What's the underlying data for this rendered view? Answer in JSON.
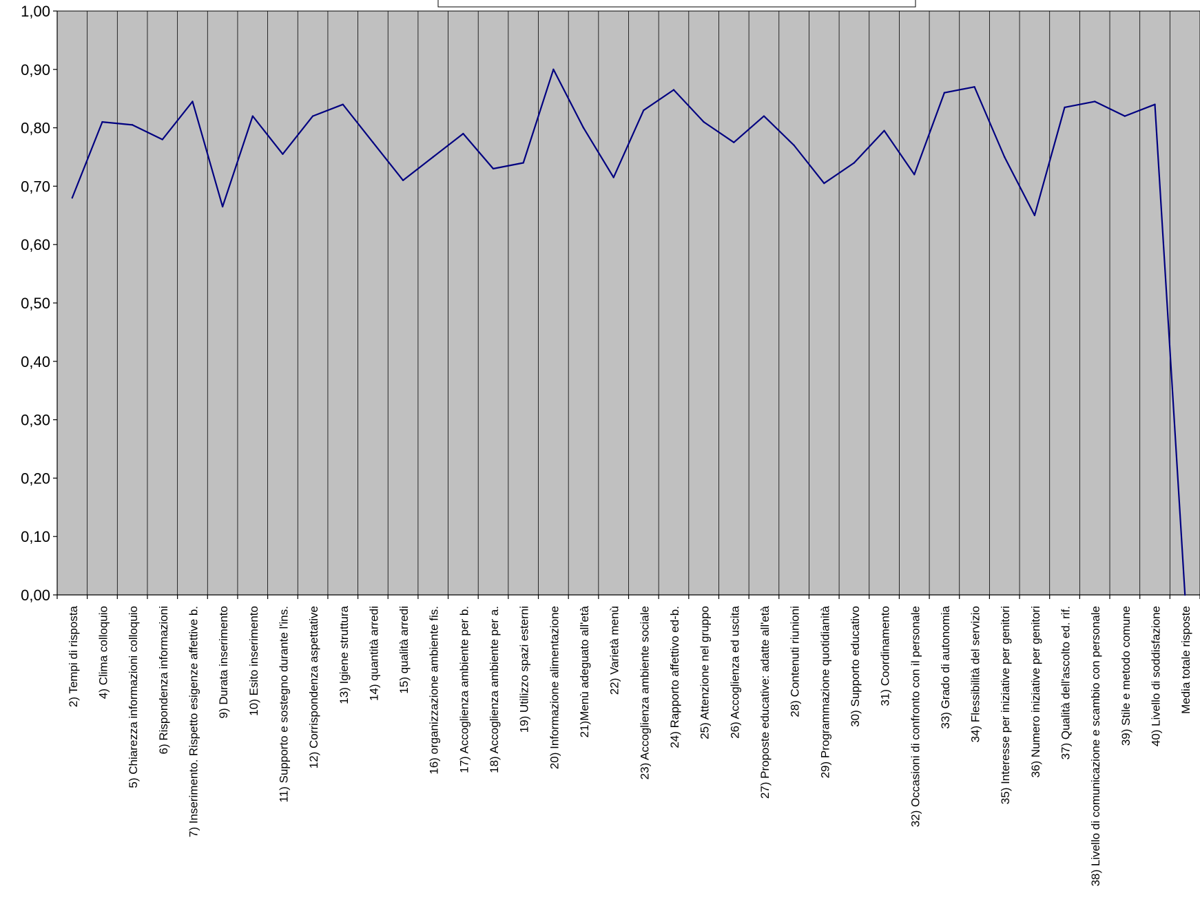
{
  "colors": {
    "plot_background": "#c0c0c0",
    "gridline": "#000000",
    "series_line": "#000080",
    "page_background": "#ffffff"
  },
  "chart_data": {
    "type": "line",
    "title": "",
    "xlabel": "",
    "ylabel": "",
    "ylim": [
      0,
      1
    ],
    "y_ticks": [
      "0,00",
      "0,10",
      "0,20",
      "0,30",
      "0,40",
      "0,50",
      "0,60",
      "0,70",
      "0,80",
      "0,90",
      "1,00"
    ],
    "grid": "vertical category dividers",
    "legend": "none visible",
    "categories": [
      "2) Tempi di risposta",
      "4) Clima colloquio",
      "5) Chiarezza informazioni colloquio",
      "6) Rispondenza informazioni",
      "7) Inserimento. Rispetto esigenze affettive b.",
      "9) Durata inserimento",
      "10) Esito inserimento",
      "11) Supporto e sostegno durante l'ins.",
      "12) Corrispondenza aspettative",
      "13) Igiene struttura",
      "14) quantità arredi",
      "15) qualità arredi",
      "16) organizzazione ambiente fis.",
      "17) Accoglienza ambiente per b.",
      "18) Accoglienza ambiente per a.",
      "19) Utilizzo spazi esterni",
      "20) Informazione alimentazione",
      "21)Menù adeguato all'età",
      "22) Varietà menù",
      "23) Accoglienza ambiente sociale",
      "24) Rapporto affettivo ed-b.",
      "25) Attenzione nel gruppo",
      "26) Accoglienza ed uscita",
      "27) Proposte educative: adatte all'età",
      "28) Contenuti riunioni",
      "29) Programmazione quotidianità",
      "30) Supporto educativo",
      "31) Coordinamento",
      "32) Occasioni di confronto con il personale",
      "33) Grado di autonomia",
      "34) Flessibilità del servizio",
      "35) Interesse per iniziative per genitori",
      "36) Numero iniziative per genitori",
      "37) Qualità dell'ascolto ed. rif.",
      "38) Livello di comunicazione e scambio con personale",
      "39) Stile e metodo comune",
      "40) Livello di soddisfazione",
      "Media totale risposte"
    ],
    "series": [
      {
        "values": [
          0.68,
          0.81,
          0.805,
          0.78,
          0.845,
          0.665,
          0.82,
          0.755,
          0.82,
          0.84,
          0.775,
          0.71,
          0.75,
          0.79,
          0.73,
          0.74,
          0.9,
          0.8,
          0.715,
          0.83,
          0.865,
          0.81,
          0.775,
          0.82,
          0.77,
          0.705,
          0.74,
          0.795,
          0.72,
          0.86,
          0.87,
          0.75,
          0.65,
          0.835,
          0.845,
          0.82,
          0.84,
          0.0
        ]
      }
    ]
  }
}
